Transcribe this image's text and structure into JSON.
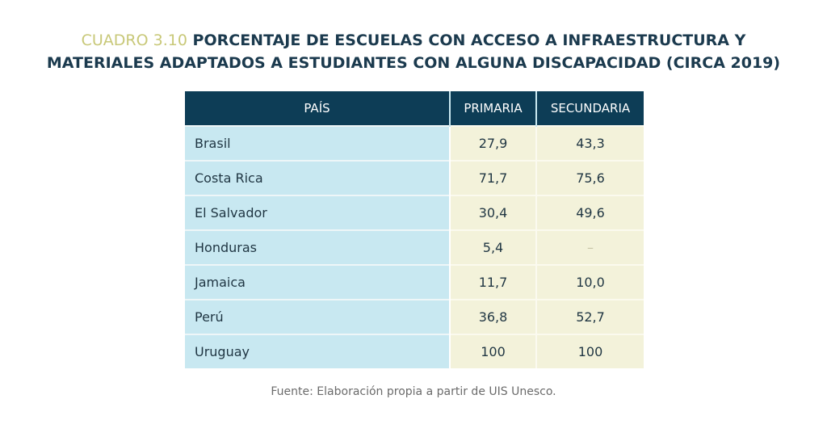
{
  "title": {
    "label": "CUADRO 3.10",
    "line1": " PORCENTAJE DE ESCUELAS CON ACCESO A INFRAESTRUCTURA Y",
    "line2": "MATERIALES ADAPTADOS A ESTUDIANTES CON ALGUNA DISCAPACIDAD (CIRCA 2019)"
  },
  "colors": {
    "label": "#c8c878",
    "title": "#1b3a4e",
    "header_bg": "#0d3d56",
    "country_bg": "#c8e8f1",
    "value_bg": "#f3f2da"
  },
  "table": {
    "headers": [
      "PAÍS",
      "PRIMARIA",
      "SECUNDARIA"
    ],
    "rows": [
      {
        "country": "Brasil",
        "primaria": "27,9",
        "secundaria": "43,3"
      },
      {
        "country": "Costa Rica",
        "primaria": "71,7",
        "secundaria": "75,6"
      },
      {
        "country": "El Salvador",
        "primaria": "30,4",
        "secundaria": "49,6"
      },
      {
        "country": "Honduras",
        "primaria": "5,4",
        "secundaria": "–"
      },
      {
        "country": "Jamaica",
        "primaria": "11,7",
        "secundaria": "10,0"
      },
      {
        "country": "Perú",
        "primaria": "36,8",
        "secundaria": "52,7"
      },
      {
        "country": "Uruguay",
        "primaria": "100",
        "secundaria": "100"
      }
    ]
  },
  "source": "Fuente: Elaboración propia a partir de UIS Unesco."
}
